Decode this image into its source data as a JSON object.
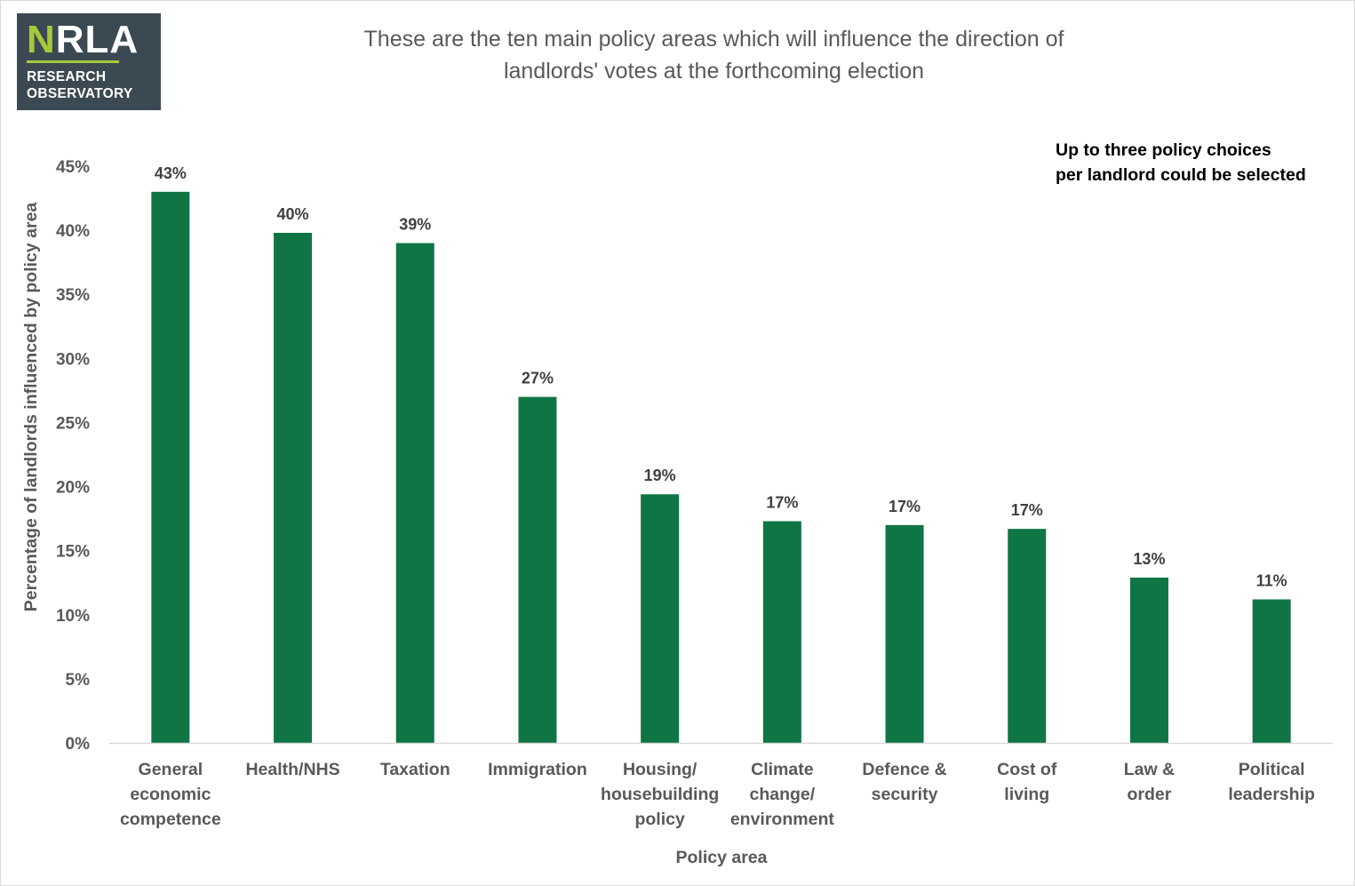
{
  "logo": {
    "mark_n": "N",
    "mark_rest": "RLA",
    "line1": "RESEARCH",
    "line2": "OBSERVATORY"
  },
  "title_line1": "These are the ten main policy areas which will influence the direction of",
  "title_line2": "landlords' votes at the forthcoming election",
  "note_line1": "Up to three policy choices",
  "note_line2": "per landlord could be selected",
  "colors": {
    "bar": "#0f7545",
    "axis": "#d9d9d9",
    "logo_bg": "#3b4a52",
    "logo_accent": "#a6c93a"
  },
  "chart_data": {
    "type": "bar",
    "categories": [
      [
        "General",
        "economic",
        "competence"
      ],
      [
        "Health/NHS"
      ],
      [
        "Taxation"
      ],
      [
        "Immigration"
      ],
      [
        "Housing/",
        "housebuilding",
        "policy"
      ],
      [
        "Climate",
        "change/",
        "environment"
      ],
      [
        "Defence &",
        "security"
      ],
      [
        "Cost of",
        "living"
      ],
      [
        "Law &",
        "order"
      ],
      [
        "Political",
        "leadership"
      ]
    ],
    "values": [
      43,
      39.8,
      39,
      27,
      19.4,
      17.3,
      17,
      16.7,
      12.9,
      11.2
    ],
    "data_labels": [
      "43%",
      "40%",
      "39%",
      "27%",
      "19%",
      "17%",
      "17%",
      "17%",
      "13%",
      "11%"
    ],
    "y_ticks": [
      0,
      5,
      10,
      15,
      20,
      25,
      30,
      35,
      40,
      45
    ],
    "y_tick_suffix": "%",
    "ylim": [
      0,
      45
    ],
    "xlabel": "Policy area",
    "ylabel": "Percentage of landlords influenced by policy area",
    "grid": false,
    "legend": "none"
  }
}
